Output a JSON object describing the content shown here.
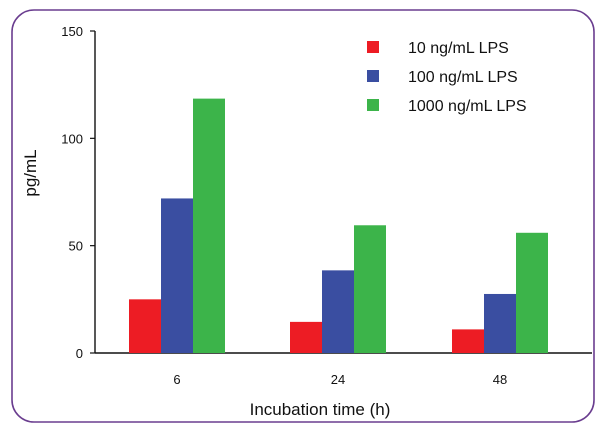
{
  "chart_data": {
    "type": "bar",
    "categories": [
      "6",
      "24",
      "48"
    ],
    "series": [
      {
        "name": "10 ng/mL LPS",
        "color": "#ed1c24",
        "values": [
          25,
          14.5,
          11
        ]
      },
      {
        "name": "100 ng/mL LPS",
        "color": "#3a4ea1",
        "values": [
          72,
          38.5,
          27.5
        ]
      },
      {
        "name": "1000 ng/mL LPS",
        "color": "#3cb44a",
        "values": [
          118.5,
          59.5,
          56
        ]
      }
    ],
    "xlabel": "Incubation time (h)",
    "ylabel": "pg/mL",
    "ylim": [
      0,
      150
    ],
    "yticks": [
      0,
      50,
      100,
      150
    ],
    "grid": false,
    "legend_position": "top-right",
    "frame_color": "#6a3d8f"
  }
}
